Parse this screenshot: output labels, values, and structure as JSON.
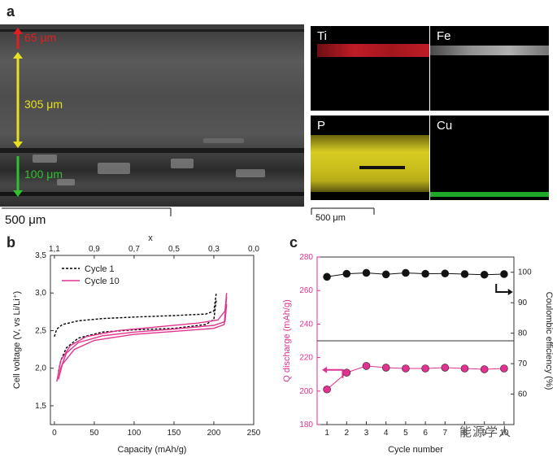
{
  "panel_a": {
    "letter": "a",
    "sem_labels": {
      "top": "65 μm",
      "middle": "305 μm",
      "bottom": "100 μm"
    },
    "sem_scale": "500 μm",
    "maps": [
      {
        "element": "Ti",
        "color": "#d41f2a"
      },
      {
        "element": "Fe",
        "color": "#cfcfcf"
      },
      {
        "element": "P",
        "color": "#d8cc22"
      },
      {
        "element": "Cu",
        "color": "#1fa82a"
      }
    ],
    "map_scale": "500 μm"
  },
  "panel_b": {
    "letter": "b",
    "chart_data": {
      "type": "line",
      "xlabel": "Capacity (mAh/g)",
      "ylabel": "Cell voltage (V, vs Li/Li⁺)",
      "top_axis_label": "x",
      "xlim": [
        -5,
        250
      ],
      "ylim": [
        1.25,
        3.5
      ],
      "x_ticks": [
        "0",
        "50",
        "100",
        "150",
        "200",
        "250"
      ],
      "y_ticks": [
        "1,5",
        "2,0",
        "2,5",
        "3,0",
        "3,5"
      ],
      "top_ticks": [
        {
          "label": "1,1",
          "at": 0
        },
        {
          "label": "0,9",
          "at": 50
        },
        {
          "label": "0,7",
          "at": 100
        },
        {
          "label": "0,5",
          "at": 150
        },
        {
          "label": "0,3",
          "at": 200
        },
        {
          "label": "0,0",
          "at": 250
        }
      ],
      "legend_position": "top-left",
      "series": [
        {
          "name": "Cycle 1",
          "color": "#000000",
          "dash": true,
          "segments": [
            [
              [
                0,
                2.42
              ],
              [
                3,
                2.52
              ],
              [
                10,
                2.58
              ],
              [
                30,
                2.63
              ],
              [
                60,
                2.66
              ],
              [
                100,
                2.68
              ],
              [
                150,
                2.7
              ],
              [
                190,
                2.72
              ],
              [
                200,
                2.76
              ],
              [
                203,
                2.99
              ]
            ],
            [
              [
                203,
                2.9
              ],
              [
                200,
                2.65
              ],
              [
                190,
                2.58
              ],
              [
                150,
                2.53
              ],
              [
                100,
                2.51
              ],
              [
                60,
                2.48
              ],
              [
                30,
                2.4
              ],
              [
                15,
                2.27
              ],
              [
                8,
                2.1
              ],
              [
                5,
                1.95
              ]
            ]
          ]
        },
        {
          "name": "Cycle 10",
          "color": "#e0338f",
          "dash": false,
          "segments": [
            [
              [
                3,
                1.82
              ],
              [
                8,
                2.1
              ],
              [
                20,
                2.3
              ],
              [
                40,
                2.42
              ],
              [
                80,
                2.5
              ],
              [
                130,
                2.55
              ],
              [
                180,
                2.6
              ],
              [
                205,
                2.64
              ],
              [
                214,
                2.76
              ],
              [
                216,
                3.0
              ]
            ],
            [
              [
                216,
                2.85
              ],
              [
                214,
                2.62
              ],
              [
                200,
                2.57
              ],
              [
                150,
                2.52
              ],
              [
                100,
                2.48
              ],
              [
                60,
                2.43
              ],
              [
                30,
                2.34
              ],
              [
                15,
                2.2
              ],
              [
                8,
                2.0
              ],
              [
                5,
                1.85
              ]
            ],
            [
              [
                5,
                1.85
              ],
              [
                10,
                2.05
              ],
              [
                25,
                2.25
              ],
              [
                50,
                2.37
              ],
              [
                100,
                2.45
              ],
              [
                150,
                2.49
              ],
              [
                200,
                2.53
              ],
              [
                213,
                2.58
              ],
              [
                216,
                2.95
              ]
            ]
          ]
        }
      ]
    }
  },
  "panel_c": {
    "letter": "c",
    "chart_data": {
      "type": "scatter",
      "xlabel": "Cycle number",
      "ylabel_left": "Q discharge (mAh/g)",
      "ylabel_right": "Coulombic efficiency (%)",
      "x": [
        1,
        2,
        3,
        4,
        5,
        6,
        7,
        8,
        9,
        10
      ],
      "xlim": [
        0.5,
        10.5
      ],
      "x_ticks": [
        "1",
        "2",
        "3",
        "4",
        "5",
        "6",
        "7",
        "8",
        "9",
        "10"
      ],
      "ylim_left": [
        180,
        280
      ],
      "y_ticks_left": [
        "180",
        "200",
        "220",
        "240",
        "260",
        "280"
      ],
      "ylim_right": [
        50,
        105
      ],
      "y_ticks_right": [
        "60",
        "70",
        "80",
        "90",
        "100"
      ],
      "series": [
        {
          "name": "Q discharge",
          "axis": "left",
          "color": "#e0338f",
          "values": [
            201,
            211,
            215,
            214,
            213.5,
            213.5,
            214,
            213.5,
            213,
            213.5
          ]
        },
        {
          "name": "Coulombic efficiency",
          "axis": "right",
          "color": "#111111",
          "values": [
            98.5,
            99.5,
            99.8,
            99.3,
            99.8,
            99.5,
            99.6,
            99.4,
            99.2,
            99.4
          ]
        }
      ],
      "divider_y_left": 230
    }
  },
  "watermark": "能源学人"
}
